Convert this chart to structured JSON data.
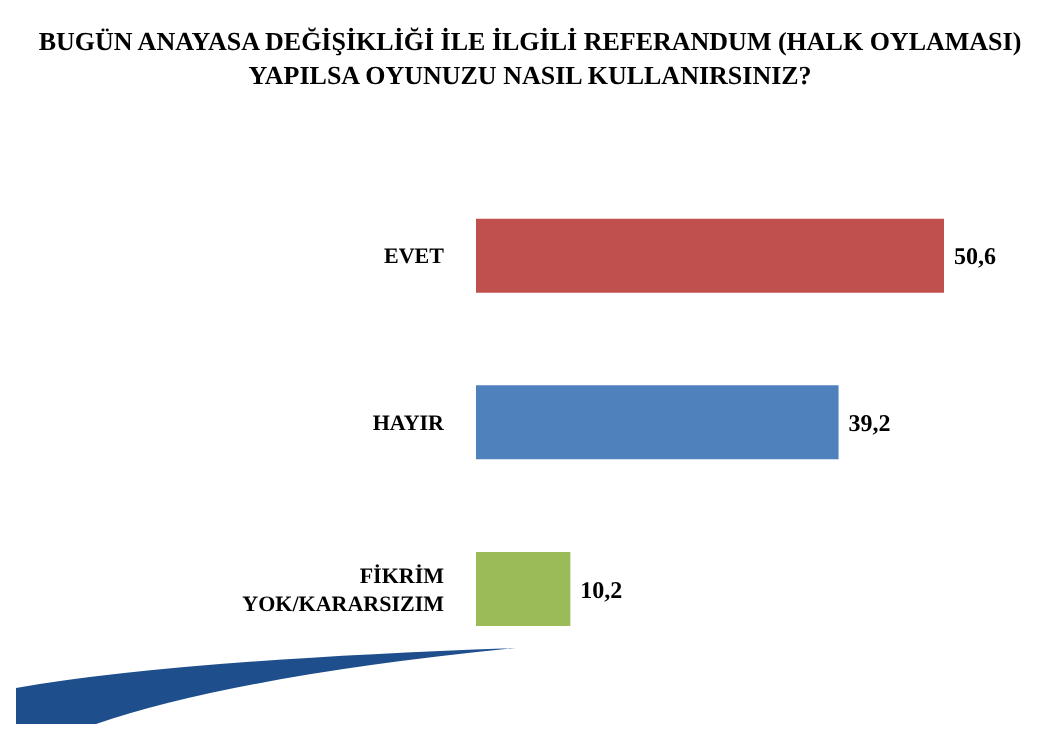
{
  "chart_data": {
    "type": "bar",
    "orientation": "horizontal",
    "title": "BUGÜN ANAYASA DEĞİŞİKLİĞİ İLE İLGİLİ REFERANDUM (HALK OYLAMASI) YAPILSA OYUNUZU NASIL KULLANIRSINIZ?",
    "categories": [
      "EVET",
      "HAYIR",
      "FİKRİM YOK/KARARSIZIM"
    ],
    "values": [
      50.6,
      39.2,
      10.2
    ],
    "colors": [
      "#c0504d",
      "#4f81bd",
      "#9bbb59"
    ],
    "value_labels": [
      "50,6",
      "39,2",
      "10,2"
    ]
  }
}
